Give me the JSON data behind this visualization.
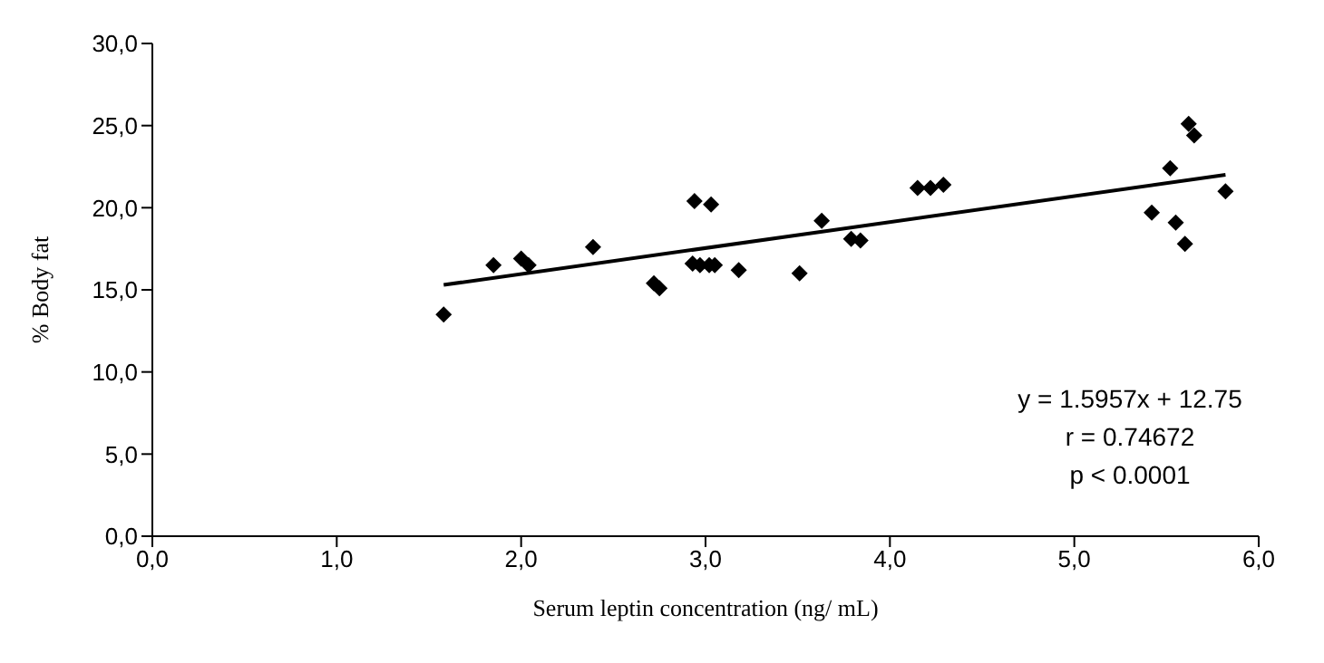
{
  "chart_data": {
    "type": "scatter",
    "xlabel": "Serum leptin concentration (ng/ mL)",
    "ylabel": "% Body fat",
    "xlim": [
      0,
      6
    ],
    "xticks": [
      {
        "value": 0,
        "label": "0,0"
      },
      {
        "value": 1,
        "label": "1,0"
      },
      {
        "value": 2,
        "label": "2,0"
      },
      {
        "value": 3,
        "label": "3,0"
      },
      {
        "value": 4,
        "label": "4,0"
      },
      {
        "value": 5,
        "label": "5,0"
      },
      {
        "value": 6,
        "label": "6,0"
      }
    ],
    "ylim": [
      0,
      30
    ],
    "yticks": [
      {
        "value": 0,
        "label": "0,0"
      },
      {
        "value": 5,
        "label": "5,0"
      },
      {
        "value": 10,
        "label": "10,0"
      },
      {
        "value": 15,
        "label": "15,0"
      },
      {
        "value": 20,
        "label": "20,0"
      },
      {
        "value": 25,
        "label": "25,0"
      },
      {
        "value": 30,
        "label": "30,0"
      }
    ],
    "grid": false,
    "legend": false,
    "marker": "diamond",
    "series": [
      {
        "color": "#000000",
        "x": [
          1.58,
          1.85,
          2.0,
          2.04,
          2.39,
          2.72,
          2.75,
          2.94,
          3.03,
          2.93,
          2.97,
          3.02,
          3.05,
          3.18,
          3.51,
          3.63,
          3.79,
          3.84,
          4.15,
          4.22,
          4.29,
          5.42,
          5.52,
          5.55,
          5.6,
          5.62,
          5.65,
          5.82
        ],
        "values": [
          13.5,
          16.5,
          16.9,
          16.5,
          17.6,
          15.4,
          15.1,
          20.4,
          20.2,
          16.6,
          16.5,
          16.5,
          16.5,
          16.2,
          16.0,
          19.2,
          18.1,
          18.0,
          21.2,
          21.2,
          21.4,
          19.7,
          22.4,
          19.1,
          17.8,
          25.1,
          24.4,
          21.0
        ]
      },
      {
        "type": "line",
        "color": "#000000",
        "marker": "none",
        "line_style": "solid",
        "x": [
          1.58,
          5.82
        ],
        "values": [
          15.3,
          22.0
        ]
      }
    ],
    "annotations": [
      "y = 1.5957x + 12.75",
      "r = 0.74672",
      "p < 0.0001"
    ]
  }
}
